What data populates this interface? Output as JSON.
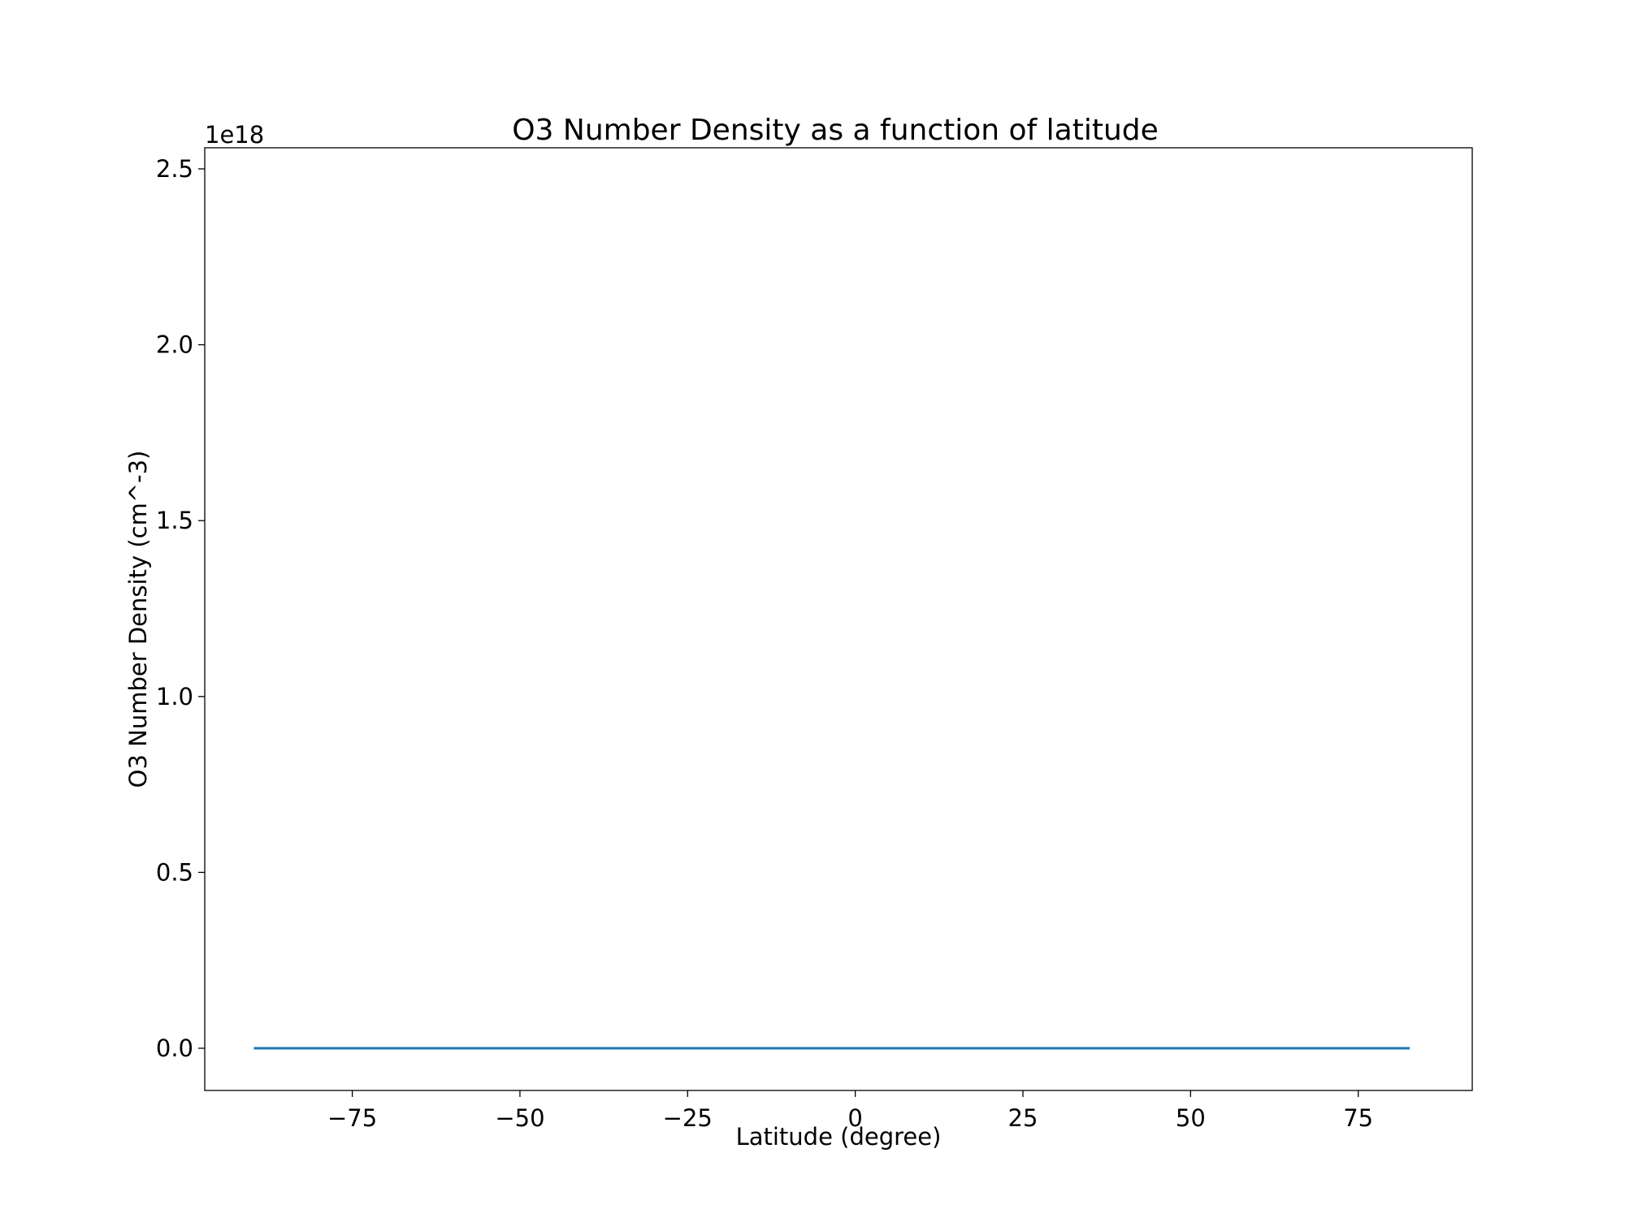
{
  "chart_data": {
    "type": "line",
    "title": "O3 Number Density as a function of latitude",
    "xlabel": "Latitude (degree)",
    "ylabel": "O3 Number Density (cm^-3)",
    "y_offset_text": "1e18",
    "y_scale_factor": 1e+18,
    "xlim": [
      -97,
      92
    ],
    "ylim": [
      -1.2e+17,
      2.56e+18
    ],
    "x_ticks": [
      -75,
      -50,
      -25,
      0,
      25,
      50,
      75
    ],
    "x_tick_labels": [
      "−75",
      "−50",
      "−25",
      "0",
      "25",
      "50",
      "75"
    ],
    "y_ticks": [
      0,
      5e+17,
      1e+18,
      1.5e+18,
      2e+18,
      2.5e+18
    ],
    "y_tick_labels": [
      "0.0",
      "0.5",
      "1.0",
      "1.5",
      "2.0",
      "2.5"
    ],
    "grid": false,
    "series": [
      {
        "color": "#1f77b4",
        "x": [
          -89.5,
          -75,
          -50,
          -25,
          0,
          25,
          50,
          75,
          82.5
        ],
        "y": [
          0,
          0,
          0,
          0,
          0,
          0,
          0,
          0,
          0
        ]
      }
    ]
  }
}
